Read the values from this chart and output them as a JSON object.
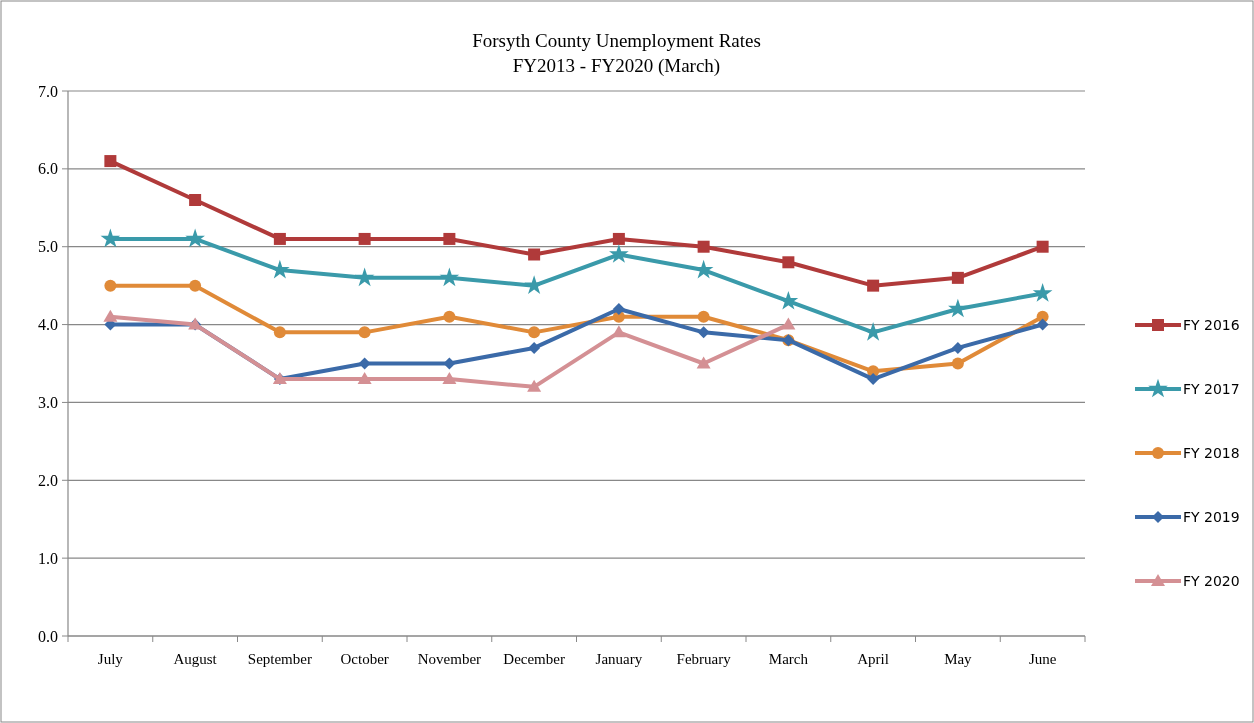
{
  "chart_data": {
    "type": "line",
    "title": "Forsyth County Unemployment Rates",
    "subtitle": "FY2013 - FY2020 (March)",
    "categories": [
      "July",
      "August",
      "September",
      "October",
      "November",
      "December",
      "January",
      "February",
      "March",
      "April",
      "May",
      "June"
    ],
    "series": [
      {
        "name": "FY 2016",
        "color": "#b03a3a",
        "marker": "square",
        "values": [
          6.1,
          5.6,
          5.1,
          5.1,
          5.1,
          4.9,
          5.1,
          5.0,
          4.8,
          4.5,
          4.6,
          5.0
        ]
      },
      {
        "name": "FY 2017",
        "color": "#3a9aaa",
        "marker": "star",
        "values": [
          5.1,
          5.1,
          4.7,
          4.6,
          4.6,
          4.5,
          4.9,
          4.7,
          4.3,
          3.9,
          4.2,
          4.4
        ]
      },
      {
        "name": "FY 2018",
        "color": "#e08a38",
        "marker": "circle",
        "values": [
          4.5,
          4.5,
          3.9,
          3.9,
          4.1,
          3.9,
          4.1,
          4.1,
          3.8,
          3.4,
          3.5,
          4.1
        ]
      },
      {
        "name": "FY 2019",
        "color": "#3b6aa8",
        "marker": "diamond",
        "values": [
          4.0,
          4.0,
          3.3,
          3.5,
          3.5,
          3.7,
          4.2,
          3.9,
          3.8,
          3.3,
          3.7,
          4.0
        ]
      },
      {
        "name": "FY 2020",
        "color": "#d49094",
        "marker": "triangle",
        "values": [
          4.1,
          4.0,
          3.3,
          3.3,
          3.3,
          3.2,
          3.9,
          3.5,
          4.0,
          null,
          null,
          null
        ]
      }
    ],
    "ylim": [
      0,
      7
    ],
    "yticks": [
      {
        "value": 0,
        "label": "0.0"
      },
      {
        "value": 1,
        "label": "1.0"
      },
      {
        "value": 2,
        "label": "2.0"
      },
      {
        "value": 3,
        "label": "3.0"
      },
      {
        "value": 4,
        "label": "4.0"
      },
      {
        "value": 5,
        "label": "5.0"
      },
      {
        "value": 6,
        "label": "6.0"
      },
      {
        "value": 7,
        "label": "7.0"
      }
    ],
    "grid": "y",
    "legend": "right",
    "line_style": "solid"
  }
}
